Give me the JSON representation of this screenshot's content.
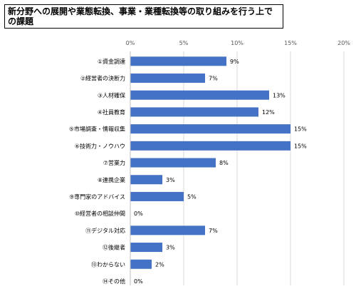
{
  "title": "新分野への展開や業態転換、事業・業種転換等の取り組みを行う上での課題",
  "chart_data": {
    "type": "bar",
    "orientation": "horizontal",
    "categories": [
      "①資金調達",
      "②経営者の決断力",
      "③人材確保",
      "④社員教育",
      "⑤市場調査・情報収集",
      "⑥技術力・ノウハウ",
      "⑦営業力",
      "⑧連携企業",
      "⑨専門家のアドバイス",
      "⑩経営者の相談仲間",
      "⑪デジタル対応",
      "⑫後継者",
      "⑬わからない",
      "⑭その他"
    ],
    "values": [
      9,
      7,
      13,
      12,
      15,
      15,
      8,
      3,
      5,
      0,
      7,
      3,
      2,
      0
    ],
    "data_labels": [
      "9%",
      "7%",
      "13%",
      "12%",
      "15%",
      "15%",
      "8%",
      "3%",
      "5%",
      "0%",
      "7%",
      "3%",
      "2%",
      "0%"
    ],
    "xlim": [
      0,
      20
    ],
    "x_ticks": [
      "0%",
      "5%",
      "10%",
      "15%",
      "20%"
    ],
    "grid": true,
    "bar_color": "#4472c4",
    "grid_color": "#d9d9d9"
  }
}
